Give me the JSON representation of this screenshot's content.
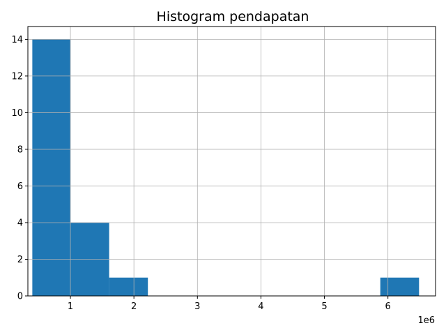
{
  "chart_data": {
    "type": "bar",
    "subtype": "histogram",
    "title": "Histogram pendapatan",
    "xlabel": "",
    "ylabel": "",
    "x_offset_label": "1e6",
    "grid": true,
    "bar_color": "#1f77b4",
    "xlim": [
      0.33,
      6.75
    ],
    "ylim": [
      0,
      14.7
    ],
    "x_ticks": [
      1,
      2,
      3,
      4,
      5,
      6
    ],
    "x_tick_labels": [
      "1",
      "2",
      "3",
      "4",
      "5",
      "6"
    ],
    "y_ticks": [
      0,
      2,
      4,
      6,
      8,
      10,
      12,
      14
    ],
    "y_tick_labels": [
      "0",
      "2",
      "4",
      "6",
      "8",
      "10",
      "12",
      "14"
    ],
    "bins": [
      {
        "x0": 0.4,
        "x1": 1.0,
        "count": 14
      },
      {
        "x0": 1.0,
        "x1": 1.61,
        "count": 4
      },
      {
        "x0": 1.61,
        "x1": 2.22,
        "count": 1
      },
      {
        "x0": 2.22,
        "x1": 2.83,
        "count": 0
      },
      {
        "x0": 2.83,
        "x1": 3.44,
        "count": 0
      },
      {
        "x0": 3.44,
        "x1": 4.05,
        "count": 0
      },
      {
        "x0": 4.05,
        "x1": 4.66,
        "count": 0
      },
      {
        "x0": 4.66,
        "x1": 5.27,
        "count": 0
      },
      {
        "x0": 5.27,
        "x1": 5.88,
        "count": 0
      },
      {
        "x0": 5.88,
        "x1": 6.49,
        "count": 1
      }
    ]
  }
}
